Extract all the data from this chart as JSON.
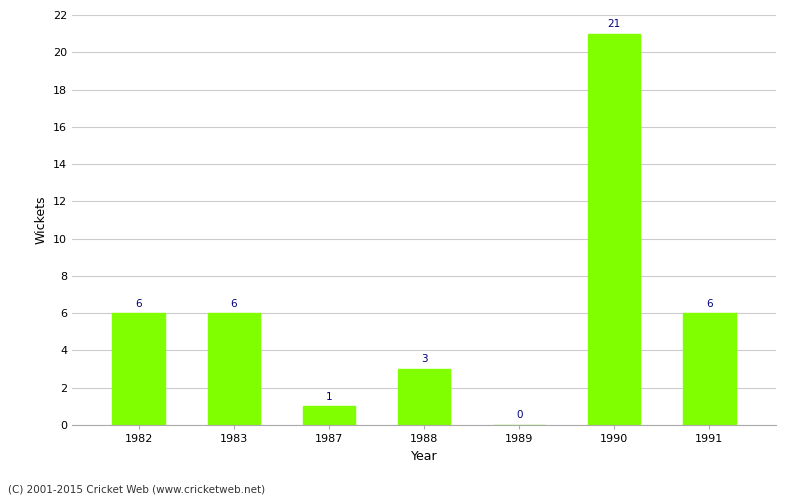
{
  "categories": [
    "1982",
    "1983",
    "1987",
    "1988",
    "1989",
    "1990",
    "1991"
  ],
  "values": [
    6,
    6,
    1,
    3,
    0,
    21,
    6
  ],
  "bar_color": "#7fff00",
  "bar_edge_color": "#7fff00",
  "xlabel": "Year",
  "ylabel": "Wickets",
  "ylim": [
    0,
    22
  ],
  "yticks": [
    0,
    2,
    4,
    6,
    8,
    10,
    12,
    14,
    16,
    18,
    20,
    22
  ],
  "label_color": "#000080",
  "label_fontsize": 7.5,
  "xlabel_fontsize": 9,
  "ylabel_fontsize": 9,
  "tick_fontsize": 8,
  "grid_color": "#cccccc",
  "background_color": "#ffffff",
  "footer_text": "(C) 2001-2015 Cricket Web (www.cricketweb.net)",
  "footer_fontsize": 7.5,
  "footer_color": "#333333",
  "bar_width": 0.55
}
